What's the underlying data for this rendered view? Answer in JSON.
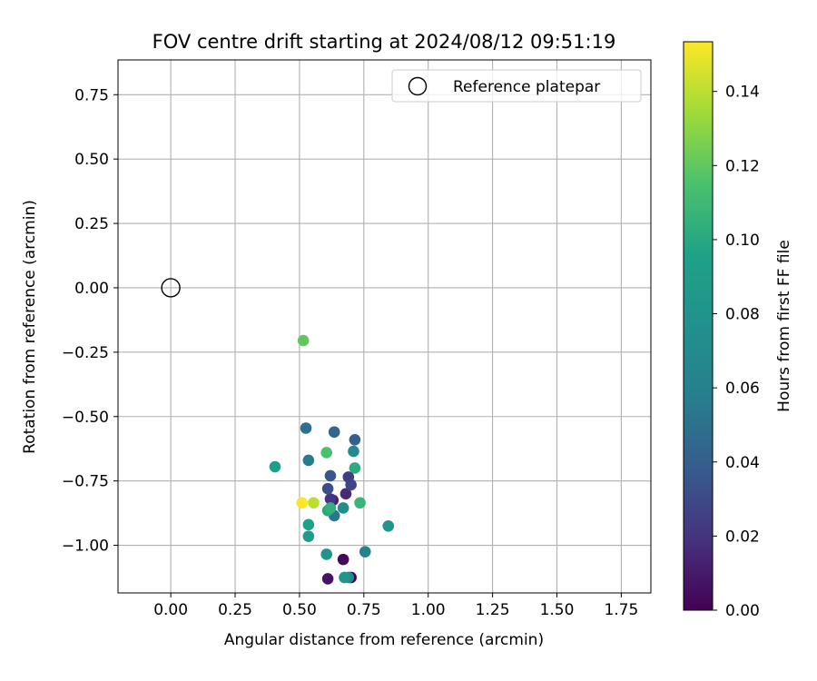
{
  "chart_data": {
    "type": "scatter",
    "title": "FOV centre drift starting at 2024/08/12 09:51:19",
    "xlabel": "Angular distance from reference (arcmin)",
    "ylabel": "Rotation from reference (arcmin)",
    "xlim": [
      -0.205,
      1.865
    ],
    "ylim": [
      -1.185,
      0.885
    ],
    "xticks": [
      0.0,
      0.25,
      0.5,
      0.75,
      1.0,
      1.25,
      1.5,
      1.75
    ],
    "xtick_labels": [
      "0.00",
      "0.25",
      "0.50",
      "0.75",
      "1.00",
      "1.25",
      "1.50",
      "1.75"
    ],
    "yticks": [
      -1.0,
      -0.75,
      -0.5,
      -0.25,
      0.0,
      0.25,
      0.5,
      0.75
    ],
    "ytick_labels": [
      "−1.00",
      "−0.75",
      "−0.50",
      "−0.25",
      "0.00",
      "0.25",
      "0.50",
      "0.75"
    ],
    "grid": true,
    "legend": {
      "position": "upper-right",
      "label": "Reference platepar"
    },
    "reference_point": {
      "x": 0.0,
      "y": 0.0
    },
    "colorbar": {
      "label": "Hours from first FF file",
      "colormap": "viridis",
      "range": [
        0.0,
        0.1534
      ],
      "ticks": [
        0.0,
        0.02,
        0.04,
        0.06,
        0.08,
        0.1,
        0.12,
        0.14
      ],
      "tick_labels": [
        "0.00",
        "0.02",
        "0.04",
        "0.06",
        "0.08",
        "0.10",
        "0.12",
        "0.14"
      ]
    },
    "points": [
      {
        "x": 0.7,
        "y": -1.125,
        "t": 0.0
      },
      {
        "x": 0.67,
        "y": -1.055,
        "t": 0.003
      },
      {
        "x": 0.61,
        "y": -1.13,
        "t": 0.007
      },
      {
        "x": 0.63,
        "y": -0.825,
        "t": 0.012
      },
      {
        "x": 0.68,
        "y": -0.8,
        "t": 0.016
      },
      {
        "x": 0.62,
        "y": -0.82,
        "t": 0.02
      },
      {
        "x": 0.69,
        "y": -0.735,
        "t": 0.024
      },
      {
        "x": 0.7,
        "y": -0.765,
        "t": 0.028
      },
      {
        "x": 0.61,
        "y": -0.78,
        "t": 0.032
      },
      {
        "x": 0.62,
        "y": -0.73,
        "t": 0.036
      },
      {
        "x": 0.715,
        "y": -0.59,
        "t": 0.04
      },
      {
        "x": 0.635,
        "y": -0.56,
        "t": 0.044
      },
      {
        "x": 0.525,
        "y": -0.545,
        "t": 0.048
      },
      {
        "x": 0.635,
        "y": -0.885,
        "t": 0.052
      },
      {
        "x": 0.535,
        "y": -0.67,
        "t": 0.056
      },
      {
        "x": 0.755,
        "y": -1.025,
        "t": 0.062
      },
      {
        "x": 0.69,
        "y": -1.125,
        "t": 0.066
      },
      {
        "x": 0.71,
        "y": -0.635,
        "t": 0.07
      },
      {
        "x": 0.67,
        "y": -0.855,
        "t": 0.074
      },
      {
        "x": 0.605,
        "y": -1.035,
        "t": 0.078
      },
      {
        "x": 0.845,
        "y": -0.925,
        "t": 0.08
      },
      {
        "x": 0.675,
        "y": -1.125,
        "t": 0.082
      },
      {
        "x": 0.535,
        "y": -0.965,
        "t": 0.088
      },
      {
        "x": 0.405,
        "y": -0.695,
        "t": 0.092
      },
      {
        "x": 0.535,
        "y": -0.92,
        "t": 0.096
      },
      {
        "x": 0.61,
        "y": -0.865,
        "t": 0.1
      },
      {
        "x": 0.715,
        "y": -0.7,
        "t": 0.102
      },
      {
        "x": 0.62,
        "y": -0.855,
        "t": 0.105
      },
      {
        "x": 0.735,
        "y": -0.835,
        "t": 0.108
      },
      {
        "x": 0.605,
        "y": -0.64,
        "t": 0.115
      },
      {
        "x": 0.515,
        "y": -0.205,
        "t": 0.12
      },
      {
        "x": 0.555,
        "y": -0.835,
        "t": 0.14
      },
      {
        "x": 0.51,
        "y": -0.835,
        "t": 0.153
      }
    ]
  }
}
